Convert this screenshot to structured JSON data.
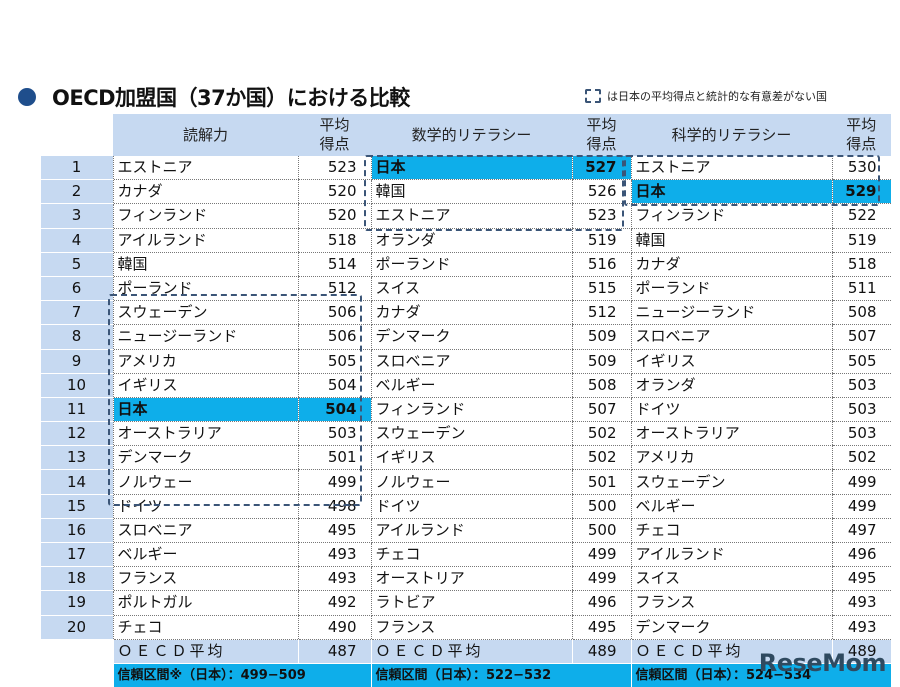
{
  "header": {
    "bullet_color": "#1f4e8c",
    "title": "OECD加盟国（37か国）における比較",
    "legend_text": "は日本の平均得点と統計的な有意差がない国"
  },
  "columns": {
    "reading": "読解力",
    "math": "数学的リテラシー",
    "science": "科学的リテラシー",
    "score_header_line1": "平均",
    "score_header_line2": "得点"
  },
  "rows": [
    {
      "rank": "1",
      "reading": {
        "name": "エストニア",
        "score": "523"
      },
      "math": {
        "name": "日本",
        "score": "527"
      },
      "science": {
        "name": "エストニア",
        "score": "530"
      }
    },
    {
      "rank": "2",
      "reading": {
        "name": "カナダ",
        "score": "520"
      },
      "math": {
        "name": "韓国",
        "score": "526"
      },
      "science": {
        "name": "日本",
        "score": "529"
      }
    },
    {
      "rank": "3",
      "reading": {
        "name": "フィンランド",
        "score": "520"
      },
      "math": {
        "name": "エストニア",
        "score": "523"
      },
      "science": {
        "name": "フィンランド",
        "score": "522"
      }
    },
    {
      "rank": "4",
      "reading": {
        "name": "アイルランド",
        "score": "518"
      },
      "math": {
        "name": "オランダ",
        "score": "519"
      },
      "science": {
        "name": "韓国",
        "score": "519"
      }
    },
    {
      "rank": "5",
      "reading": {
        "name": "韓国",
        "score": "514"
      },
      "math": {
        "name": "ポーランド",
        "score": "516"
      },
      "science": {
        "name": "カナダ",
        "score": "518"
      }
    },
    {
      "rank": "6",
      "reading": {
        "name": "ポーランド",
        "score": "512"
      },
      "math": {
        "name": "スイス",
        "score": "515"
      },
      "science": {
        "name": "ポーランド",
        "score": "511"
      }
    },
    {
      "rank": "7",
      "reading": {
        "name": "スウェーデン",
        "score": "506"
      },
      "math": {
        "name": "カナダ",
        "score": "512"
      },
      "science": {
        "name": "ニュージーランド",
        "score": "508"
      }
    },
    {
      "rank": "8",
      "reading": {
        "name": "ニュージーランド",
        "score": "506"
      },
      "math": {
        "name": "デンマーク",
        "score": "509"
      },
      "science": {
        "name": "スロベニア",
        "score": "507"
      }
    },
    {
      "rank": "9",
      "reading": {
        "name": "アメリカ",
        "score": "505"
      },
      "math": {
        "name": "スロベニア",
        "score": "509"
      },
      "science": {
        "name": "イギリス",
        "score": "505"
      }
    },
    {
      "rank": "10",
      "reading": {
        "name": "イギリス",
        "score": "504"
      },
      "math": {
        "name": "ベルギー",
        "score": "508"
      },
      "science": {
        "name": "オランダ",
        "score": "503"
      }
    },
    {
      "rank": "11",
      "reading": {
        "name": "日本",
        "score": "504"
      },
      "math": {
        "name": "フィンランド",
        "score": "507"
      },
      "science": {
        "name": "ドイツ",
        "score": "503"
      }
    },
    {
      "rank": "12",
      "reading": {
        "name": "オーストラリア",
        "score": "503"
      },
      "math": {
        "name": "スウェーデン",
        "score": "502"
      },
      "science": {
        "name": "オーストラリア",
        "score": "503"
      }
    },
    {
      "rank": "13",
      "reading": {
        "name": "デンマーク",
        "score": "501"
      },
      "math": {
        "name": "イギリス",
        "score": "502"
      },
      "science": {
        "name": "アメリカ",
        "score": "502"
      }
    },
    {
      "rank": "14",
      "reading": {
        "name": "ノルウェー",
        "score": "499"
      },
      "math": {
        "name": "ノルウェー",
        "score": "501"
      },
      "science": {
        "name": "スウェーデン",
        "score": "499"
      }
    },
    {
      "rank": "15",
      "reading": {
        "name": "ドイツ",
        "score": "498"
      },
      "math": {
        "name": "ドイツ",
        "score": "500"
      },
      "science": {
        "name": "ベルギー",
        "score": "499"
      }
    },
    {
      "rank": "16",
      "reading": {
        "name": "スロベニア",
        "score": "495"
      },
      "math": {
        "name": "アイルランド",
        "score": "500"
      },
      "science": {
        "name": "チェコ",
        "score": "497"
      }
    },
    {
      "rank": "17",
      "reading": {
        "name": "ベルギー",
        "score": "493"
      },
      "math": {
        "name": "チェコ",
        "score": "499"
      },
      "science": {
        "name": "アイルランド",
        "score": "496"
      }
    },
    {
      "rank": "18",
      "reading": {
        "name": "フランス",
        "score": "493"
      },
      "math": {
        "name": "オーストリア",
        "score": "499"
      },
      "science": {
        "name": "スイス",
        "score": "495"
      }
    },
    {
      "rank": "19",
      "reading": {
        "name": "ポルトガル",
        "score": "492"
      },
      "math": {
        "name": "ラトビア",
        "score": "496"
      },
      "science": {
        "name": "フランス",
        "score": "493"
      }
    },
    {
      "rank": "20",
      "reading": {
        "name": "チェコ",
        "score": "490"
      },
      "math": {
        "name": "フランス",
        "score": "495"
      },
      "science": {
        "name": "デンマーク",
        "score": "493"
      }
    }
  ],
  "oecd_average": {
    "label": "ＯＥＣＤ平均",
    "reading": "487",
    "math": "489",
    "science": "489"
  },
  "confidence_interval": {
    "reading": "信頼区間※（日本）：499−509",
    "math": "信頼区間（日本）：522−532",
    "science": "信頼区間（日本）：524−534"
  },
  "highlight_color": "#0eaeea",
  "header_bg_color": "#c6d9f1",
  "watermark": "ReseMom"
}
